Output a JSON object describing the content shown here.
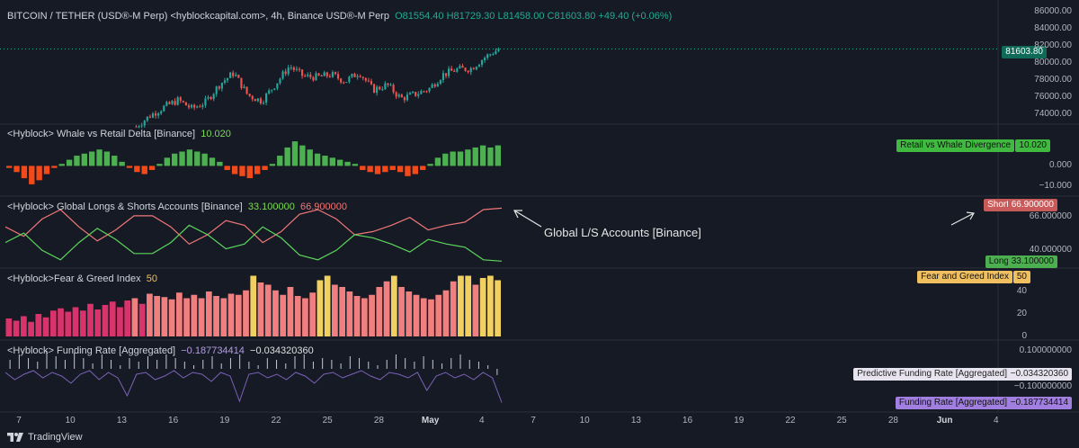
{
  "main": {
    "title": "BITCOIN / TETHER (USD®-M Perp) <hyblockcapital.com>, 4h, Binance USD®-M Perp",
    "ohlc": "O81554.40  H81729.30  L81458.00  C81603.80  +49.40 (+0.06%)",
    "last_price": "81603.80",
    "y_ticks": [
      "86000.00",
      "84000.00",
      "82000.00",
      "80000.00",
      "78000.00",
      "76000.00",
      "74000.00"
    ]
  },
  "panes": {
    "whale": {
      "title": "<Hyblock> Whale vs Retail Delta [Binance]",
      "value": "10.020",
      "tag_label": "Retail vs Whale Divergence",
      "tag_value": "10.020",
      "y_ticks": [
        "0.000",
        "−10.000"
      ]
    },
    "ls": {
      "title": "<Hyblock> Global Longs & Shorts Accounts [Binance]",
      "long_value": "33.100000",
      "short_value": "66.900000",
      "short_label": "Short",
      "long_label": "Long",
      "y_ticks": [
        "66.000000",
        "40.000000"
      ],
      "annotation": "Global L/S Accounts [Binance]"
    },
    "fg": {
      "title": "<Hyblock>Fear & Greed Index",
      "value": "50",
      "tag_label": "Fear and Greed Index",
      "tag_value": "50",
      "y_ticks": [
        "40",
        "20",
        "0"
      ]
    },
    "funding": {
      "title": "<Hyblock> Funding Rate [Aggregated]",
      "value1": "−0.187734414",
      "value2": "−0.034320360",
      "tag1_label": "Predictive Funding Rate [Aggregated]",
      "tag1_value": "−0.034320360",
      "tag2_label": "Funding Rate [Aggregated]",
      "tag2_value": "−0.187734414",
      "y_ticks": [
        "0.100000000",
        "−0.100000000"
      ]
    }
  },
  "x_axis": [
    "7",
    "10",
    "13",
    "16",
    "19",
    "22",
    "25",
    "28",
    "May",
    "4",
    "7",
    "10",
    "13",
    "16",
    "19",
    "22",
    "25",
    "28",
    "Jun",
    "4"
  ],
  "footer": "TradingView",
  "colors": {
    "bg": "#161a25",
    "up": "#26a69a",
    "down": "#ef5350",
    "green_bar": "#4caf50",
    "red_bar": "#f44a1a",
    "short_line": "#ef7777",
    "long_line": "#5cd65c",
    "fg_red": "#d8336a",
    "fg_salmon": "#f08080",
    "fg_yellow": "#f0d060",
    "funding": "#8c8fa6"
  },
  "chart_data": [
    {
      "type": "candlestick",
      "title": "BITCOIN / TETHER (USD®-M Perp) <hyblockcapital.com>, 4h, Binance USD®-M Perp",
      "x": [
        "7",
        "10",
        "13",
        "16",
        "19",
        "22",
        "25",
        "28",
        "May",
        "4"
      ],
      "close_path": [
        72500,
        73800,
        74800,
        75600,
        74600,
        75400,
        77500,
        78800,
        76200,
        75500,
        77500,
        79600,
        78400,
        78300,
        78600,
        77800,
        78900,
        76800,
        77400,
        75800,
        76300,
        76900,
        78600,
        79200,
        79300,
        80600,
        81603.8
      ],
      "ylim": [
        73000,
        86500
      ]
    },
    {
      "type": "bar",
      "title": "<Hyblock> Whale vs Retail Delta [Binance]",
      "values": [
        -1,
        -3,
        -6,
        -9,
        -7,
        -4,
        -1,
        1,
        3,
        5,
        6,
        7,
        8,
        7,
        5,
        2,
        -1,
        -3,
        -4,
        -2,
        1,
        4,
        6,
        7,
        8,
        7,
        6,
        4,
        2,
        -2,
        -4,
        -5,
        -6,
        -4,
        -2,
        1,
        5,
        9,
        12,
        10,
        8,
        6,
        5,
        4,
        3,
        2,
        1,
        -2,
        -3,
        -4,
        -3,
        -2,
        -3,
        -5,
        -4,
        -2,
        1,
        4,
        6,
        7,
        7,
        8,
        9,
        10,
        9,
        10.02
      ],
      "ylim": [
        -13,
        16
      ]
    },
    {
      "type": "line",
      "title": "<Hyblock> Global Longs & Shorts Accounts [Binance]",
      "series": [
        {
          "name": "Short",
          "values": [
            55,
            49,
            60,
            66,
            55,
            46,
            53,
            62,
            62,
            55,
            44,
            50,
            59,
            56,
            45,
            52,
            63,
            66,
            60,
            50,
            52,
            56,
            61,
            53,
            56,
            58,
            66,
            66.9
          ]
        },
        {
          "name": "Long",
          "values": [
            45,
            51,
            40,
            34,
            45,
            54,
            47,
            38,
            38,
            45,
            56,
            50,
            41,
            44,
            55,
            48,
            37,
            34,
            40,
            50,
            48,
            44,
            39,
            47,
            44,
            42,
            34,
            33.1
          ]
        }
      ],
      "ylim": [
        31,
        70
      ]
    },
    {
      "type": "bar",
      "title": "<Hyblock>Fear & Greed Index",
      "values": [
        16,
        14,
        18,
        13,
        20,
        17,
        23,
        25,
        22,
        26,
        23,
        29,
        24,
        28,
        31,
        26,
        32,
        34,
        29,
        38,
        36,
        35,
        33,
        39,
        34,
        37,
        34,
        40,
        36,
        34,
        38,
        37,
        41,
        54,
        48,
        46,
        41,
        37,
        44,
        36,
        34,
        39,
        50,
        54,
        46,
        44,
        40,
        36,
        34,
        37,
        44,
        49,
        54,
        44,
        40,
        37,
        34,
        33,
        37,
        41,
        49,
        54,
        54,
        46,
        52,
        54,
        50
      ],
      "ylim": [
        0,
        56
      ]
    },
    {
      "type": "bar",
      "title": "<Hyblock> Funding Rate [Aggregated]",
      "series": [
        {
          "name": "Predictive Funding Rate [Aggregated]",
          "values": [
            0.05,
            0.08,
            0.06,
            0.04,
            0.1,
            0.07,
            0.05,
            0.09,
            0.06,
            0.03,
            0.08,
            0.05,
            0.02,
            0.06,
            0.04,
            0.07,
            0.05,
            0.08,
            0.06,
            0.04,
            0.02,
            0.05,
            0.07,
            0.03,
            0.06,
            0.08,
            0.04,
            0.02,
            0.06,
            0.05,
            0.03,
            0.07,
            0.08,
            0.04,
            0.06,
            0.05,
            0.03,
            0.07,
            0.06,
            0.04,
            0.02,
            0.05,
            0.08,
            0.06,
            0.04,
            0.07,
            0.05,
            0.03,
            0.06,
            0.08,
            0.05,
            0.04,
            0.02,
            -0.03432036
          ]
        },
        {
          "name": "Funding Rate [Aggregated]",
          "values": [
            -0.02,
            -0.06,
            -0.03,
            -0.01,
            -0.05,
            -0.02,
            -0.04,
            -0.08,
            -0.03,
            -0.01,
            -0.06,
            -0.02,
            -0.05,
            -0.15,
            -0.03,
            -0.02,
            -0.06,
            -0.04,
            -0.01,
            -0.05,
            -0.02,
            -0.03,
            -0.07,
            -0.02,
            -0.04,
            -0.18,
            -0.03,
            -0.02,
            -0.05,
            -0.03,
            -0.06,
            -0.02,
            -0.04,
            -0.08,
            -0.03,
            -0.02,
            -0.05,
            -0.03,
            -0.01,
            -0.04,
            -0.06,
            -0.02,
            -0.03,
            -0.05,
            -0.02,
            -0.12,
            -0.04,
            -0.02,
            -0.05,
            -0.03,
            -0.06,
            -0.02,
            -0.05,
            -0.187734414
          ]
        }
      ],
      "ylim": [
        -0.2,
        0.12
      ]
    }
  ]
}
